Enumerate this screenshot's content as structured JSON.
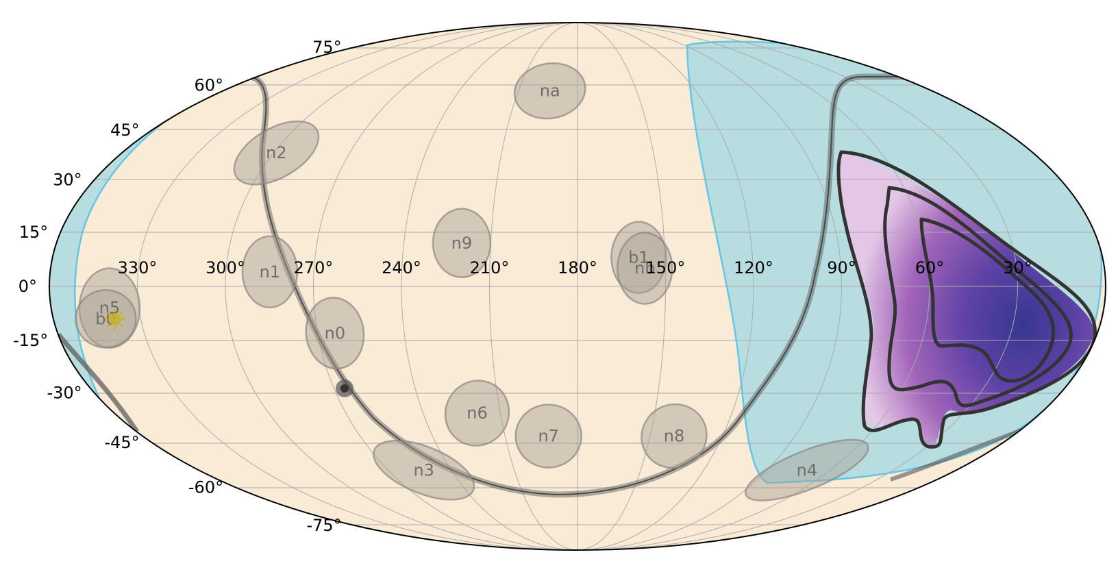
{
  "chart_data": {
    "type": "sky-map",
    "projection": "mollweide",
    "grid": true,
    "longitude_direction": "decreasing-to-right",
    "colors": {
      "background": "#faebd7",
      "occulted_region": "#b8dde0",
      "occulted_edge": "#63c6e5",
      "detector_fill": "#a79f94",
      "grid": "#aaaaaa",
      "contour": "#333333",
      "localization_low": "#f0d8f0",
      "localization_high": "#2e2e8c",
      "sun": "#c9b227"
    },
    "lat_ticks": [
      {
        "label": "75°",
        "lat": 75
      },
      {
        "label": "60°",
        "lat": 60
      },
      {
        "label": "45°",
        "lat": 45
      },
      {
        "label": "30°",
        "lat": 30
      },
      {
        "label": "15°",
        "lat": 15
      },
      {
        "label": "0°",
        "lat": 0
      },
      {
        "label": "-15°",
        "lat": -15
      },
      {
        "label": "-30°",
        "lat": -30
      },
      {
        "label": "-45°",
        "lat": -45
      },
      {
        "label": "-60°",
        "lat": -60
      },
      {
        "label": "-75°",
        "lat": -75
      }
    ],
    "lon_ticks": [
      {
        "label": "330°",
        "lon": 330
      },
      {
        "label": "300°",
        "lon": 300
      },
      {
        "label": "270°",
        "lon": 270
      },
      {
        "label": "240°",
        "lon": 240
      },
      {
        "label": "210°",
        "lon": 210
      },
      {
        "label": "180°",
        "lon": 180
      },
      {
        "label": "150°",
        "lon": 150
      },
      {
        "label": "120°",
        "lon": 120
      },
      {
        "label": "90°",
        "lon": 90
      },
      {
        "label": "60°",
        "lon": 60
      },
      {
        "label": "30°",
        "lon": 30
      }
    ],
    "detectors": [
      {
        "name": "na",
        "lon": 194,
        "lat": 58
      },
      {
        "name": "n2",
        "lon": 299,
        "lat": 38
      },
      {
        "name": "n9",
        "lon": 220,
        "lat": 12
      },
      {
        "name": "b1",
        "lon": 159,
        "lat": 8
      },
      {
        "name": "nb",
        "lon": 157,
        "lat": 5
      },
      {
        "name": "n1",
        "lon": 285,
        "lat": 4
      },
      {
        "name": "n0",
        "lon": 264,
        "lat": -13
      },
      {
        "name": "n5",
        "lon": 340,
        "lat": -6
      },
      {
        "name": "b0",
        "lon": 342,
        "lat": -9
      },
      {
        "name": "n6",
        "lon": 219,
        "lat": -36
      },
      {
        "name": "n7",
        "lon": 192,
        "lat": -43
      },
      {
        "name": "n8",
        "lon": 140,
        "lat": -43
      },
      {
        "name": "n3",
        "lon": 253,
        "lat": -54
      },
      {
        "name": "n4",
        "lon": 71,
        "lat": -54
      }
    ],
    "sun": {
      "lon": 343,
      "lat": -9
    },
    "galactic_plane": true
  }
}
